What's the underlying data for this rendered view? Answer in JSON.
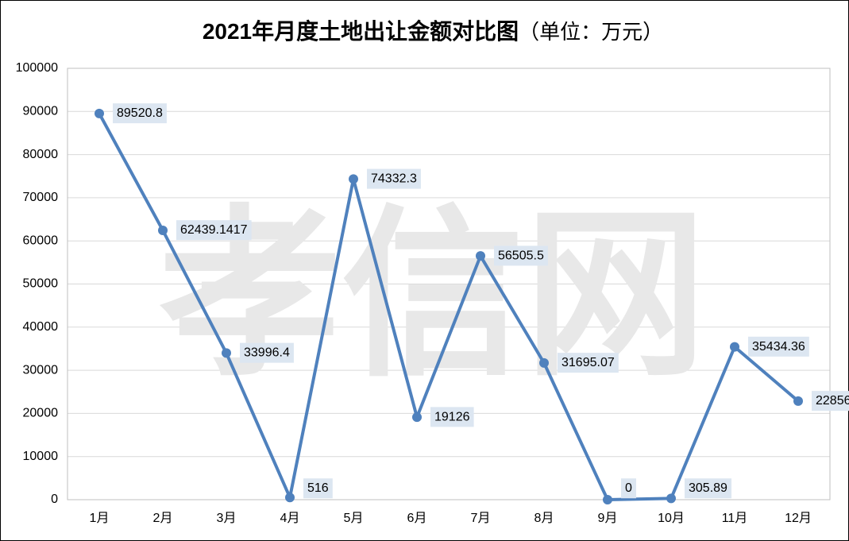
{
  "chart_data": {
    "type": "line",
    "title": "2021年月度土地出让金额对比图",
    "subtitle": "（单位：万元）",
    "watermark": "孝信网",
    "categories": [
      "1月",
      "2月",
      "3月",
      "4月",
      "5月",
      "6月",
      "7月",
      "8月",
      "9月",
      "10月",
      "11月",
      "12月"
    ],
    "series": [
      {
        "name": "土地出让金额",
        "color": "#4f81bd",
        "values": [
          89520.8,
          62439.1417,
          33996.4,
          516,
          74332.3,
          19126,
          56505.5,
          31695.07,
          0,
          305.89,
          35434.36,
          22856
        ]
      }
    ],
    "ylim": [
      0,
      100000
    ],
    "yticks": [
      0,
      10000,
      20000,
      30000,
      40000,
      50000,
      60000,
      70000,
      80000,
      90000,
      100000
    ],
    "grid": true
  }
}
